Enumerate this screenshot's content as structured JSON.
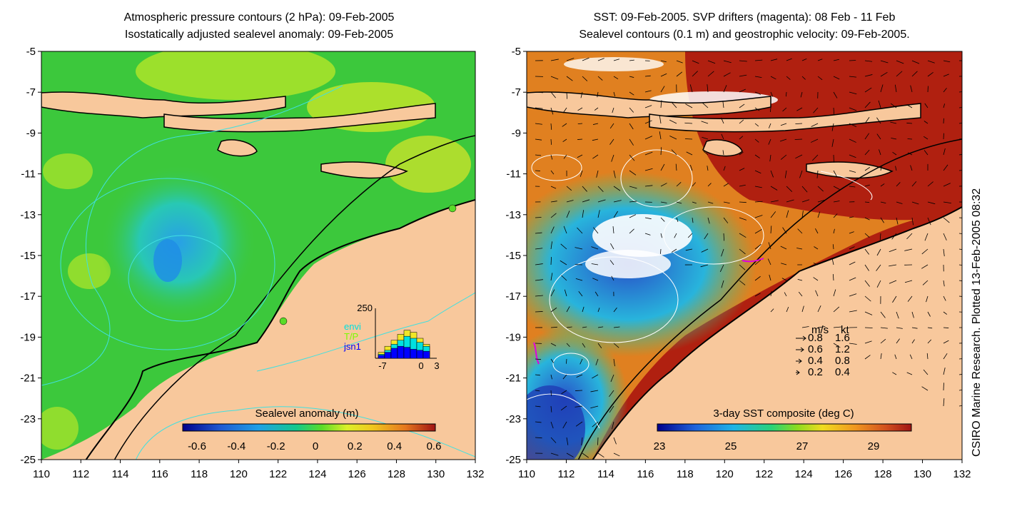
{
  "left_panel": {
    "title_line1": "Atmospheric pressure contours (2 hPa): 09-Feb-2005",
    "title_line2": "Isostatically adjusted sealevel anomaly: 09-Feb-2005",
    "y_ticks": [
      "-5",
      "-7",
      "-9",
      "-11",
      "-13",
      "-15",
      "-17",
      "-19",
      "-21",
      "-23",
      "-25"
    ],
    "x_ticks": [
      "110",
      "112",
      "114",
      "116",
      "118",
      "120",
      "122",
      "124",
      "126",
      "128",
      "130",
      "132"
    ],
    "colorbar": {
      "label": "Sealevel anomaly (m)",
      "ticks": [
        "-0.6",
        "-0.4",
        "-0.2",
        "0",
        "0.2",
        "0.4",
        "0.6"
      ]
    },
    "histogram": {
      "ymax_label": "250",
      "x_labels": [
        "-7",
        "0",
        "3"
      ],
      "legend": [
        {
          "label": "envi",
          "color": "#00e0e0"
        },
        {
          "label": "T/P",
          "color": "#7cfc00"
        },
        {
          "label": "jsn1",
          "color": "#0000ff"
        }
      ],
      "bars_envi": [
        20,
        40,
        70,
        90,
        110,
        100,
        80,
        60
      ],
      "bars_tp": [
        30,
        60,
        90,
        120,
        140,
        130,
        100,
        70
      ],
      "bars_jsn1": [
        15,
        30,
        50,
        60,
        55,
        45,
        40,
        35
      ]
    }
  },
  "right_panel": {
    "title_line1": "SST: 09-Feb-2005. SVP drifters (magenta): 08 Feb - 11 Feb",
    "title_line2": "Sealevel contours (0.1 m) and geostrophic velocity: 09-Feb-2005.",
    "y_ticks": [
      "-5",
      "-7",
      "-9",
      "-11",
      "-13",
      "-15",
      "-17",
      "-19",
      "-21",
      "-23",
      "-25"
    ],
    "x_ticks": [
      "110",
      "112",
      "114",
      "116",
      "118",
      "120",
      "122",
      "124",
      "126",
      "128",
      "130",
      "132"
    ],
    "colorbar": {
      "label": "3-day SST composite (deg C)",
      "ticks": [
        "23",
        "25",
        "27",
        "29"
      ]
    },
    "velocity_legend": {
      "header_ms": "m/s",
      "header_kt": "kt",
      "rows": [
        {
          "ms": "0.8",
          "kt": "1.6"
        },
        {
          "ms": "0.6",
          "kt": "1.2"
        },
        {
          "ms": "0.4",
          "kt": "0.8"
        },
        {
          "ms": "0.2",
          "kt": "0.4"
        }
      ]
    }
  },
  "credit": "CSIRO Marine Research. Plotted 13-Feb-2005 08:32",
  "colors": {
    "land": "#f8c89c",
    "sea_green": "#3cc83c",
    "sst_orange": "#e08020",
    "sst_darkred": "#b02010",
    "contour_cyan": "#40e0e0"
  }
}
